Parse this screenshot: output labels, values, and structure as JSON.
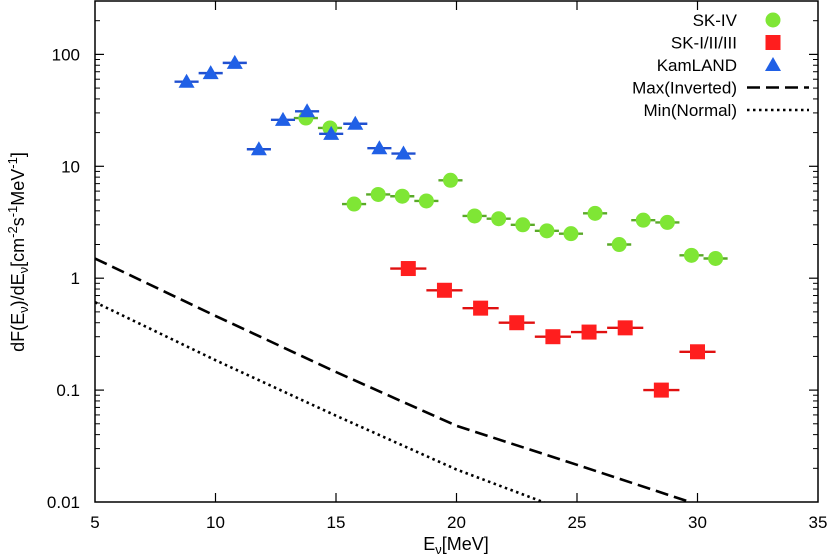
{
  "chart_data": {
    "type": "scatter",
    "title": "",
    "xlabel": "Eν[MeV]",
    "ylabel": "dF(Eν)/dEν[cm⁻²s⁻¹MeV⁻¹]",
    "xlim": [
      5,
      35
    ],
    "ylim": [
      0.01,
      300
    ],
    "yscale": "log",
    "x_ticks": [
      5,
      10,
      15,
      20,
      25,
      30,
      35
    ],
    "x_tick_labels": [
      "5",
      "10",
      "15",
      "20",
      "25",
      "30",
      "35"
    ],
    "y_ticks": [
      0.01,
      0.1,
      1,
      10,
      100
    ],
    "y_tick_labels": [
      "0.01",
      "0.1",
      "1",
      "10",
      "100"
    ],
    "legend_position": "top-right",
    "series": [
      {
        "name": "SK-IV",
        "marker": "circle",
        "color": "#7fe635",
        "x": [
          13.75,
          14.75,
          15.75,
          16.75,
          17.75,
          18.75,
          19.75,
          20.75,
          21.75,
          22.75,
          23.75,
          24.75,
          25.75,
          26.75,
          27.75,
          28.75,
          29.75,
          30.75
        ],
        "values": [
          27,
          22,
          4.6,
          5.6,
          5.4,
          4.9,
          7.5,
          3.6,
          3.4,
          3.0,
          2.65,
          2.5,
          3.8,
          2.0,
          3.3,
          3.15,
          1.6,
          1.5
        ],
        "xerr": 0.5
      },
      {
        "name": "SK-I/II/III",
        "marker": "square",
        "color": "#ff1e1e",
        "x": [
          18,
          19.5,
          21,
          22.5,
          24,
          25.5,
          27,
          28.5,
          30
        ],
        "values": [
          1.22,
          0.78,
          0.54,
          0.4,
          0.3,
          0.33,
          0.36,
          0.1,
          0.22
        ],
        "xerr": 0.75
      },
      {
        "name": "KamLAND",
        "marker": "triangle",
        "color": "#2060e6",
        "x": [
          8.8,
          9.8,
          10.8,
          11.8,
          12.8,
          13.8,
          14.8,
          15.8,
          16.8,
          17.8
        ],
        "values": [
          57,
          68,
          84,
          14.2,
          26,
          31,
          19.5,
          24,
          14.5,
          13
        ],
        "xerr": 0.5
      },
      {
        "name": "Max(Inverted)",
        "line": "dashed",
        "color": "#000000",
        "x": [
          5,
          10,
          15,
          20,
          25,
          30
        ],
        "values": [
          1.5,
          0.46,
          0.145,
          0.048,
          0.0215,
          0.0095
        ]
      },
      {
        "name": "Min(Normal)",
        "line": "dotted",
        "color": "#000000",
        "x": [
          5,
          10,
          15,
          20,
          23.7
        ],
        "values": [
          0.61,
          0.185,
          0.059,
          0.0195,
          0.0098
        ]
      }
    ]
  }
}
